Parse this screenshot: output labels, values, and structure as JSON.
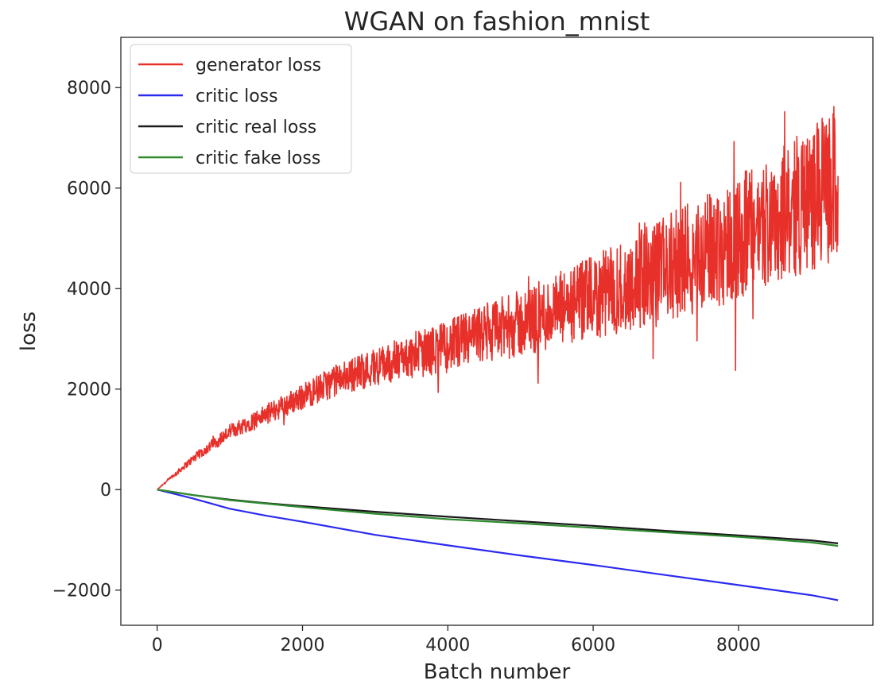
{
  "chart_data": {
    "type": "line",
    "title": "WGAN on fashion_mnist",
    "xlabel": "Batch number",
    "ylabel": "loss",
    "xlim": [
      -500,
      9850
    ],
    "ylim": [
      -2700,
      9000
    ],
    "xticks": [
      0,
      2000,
      4000,
      6000,
      8000
    ],
    "xtick_labels": [
      "0",
      "2000",
      "4000",
      "6000",
      "8000"
    ],
    "yticks": [
      -2000,
      0,
      2000,
      4000,
      6000,
      8000
    ],
    "ytick_labels": [
      "−2000",
      "0",
      "2000",
      "4000",
      "6000",
      "8000"
    ],
    "grid": false,
    "legend_position": "top-left",
    "series": [
      {
        "name": "generator loss",
        "color": "#e8302a",
        "noisy": true,
        "x": [
          0,
          500,
          1000,
          1500,
          2000,
          2500,
          3000,
          3500,
          4000,
          4500,
          5000,
          5500,
          6000,
          6500,
          7000,
          7500,
          8000,
          8500,
          9000,
          9370
        ],
        "values": [
          0,
          620,
          1150,
          1500,
          1850,
          2200,
          2450,
          2650,
          2850,
          3100,
          3300,
          3550,
          3800,
          4100,
          4400,
          4700,
          5000,
          5400,
          5800,
          6100
        ],
        "noise_band": [
          0,
          80,
          150,
          200,
          260,
          320,
          380,
          450,
          520,
          600,
          680,
          760,
          850,
          950,
          1050,
          1150,
          1250,
          1350,
          1450,
          1500
        ]
      },
      {
        "name": "critic loss",
        "color": "#2b2bf0",
        "noisy": false,
        "x": [
          0,
          500,
          1000,
          1500,
          2000,
          3000,
          4000,
          5000,
          6000,
          7000,
          8000,
          9000,
          9370
        ],
        "values": [
          0,
          -180,
          -380,
          -520,
          -640,
          -900,
          -1110,
          -1310,
          -1500,
          -1700,
          -1900,
          -2100,
          -2200
        ]
      },
      {
        "name": "critic real loss",
        "color": "#1a1a1a",
        "noisy": false,
        "x": [
          0,
          500,
          1000,
          1500,
          2000,
          3000,
          4000,
          5000,
          6000,
          7000,
          8000,
          9000,
          9370
        ],
        "values": [
          0,
          -110,
          -200,
          -270,
          -330,
          -440,
          -540,
          -630,
          -720,
          -820,
          -910,
          -1010,
          -1070
        ]
      },
      {
        "name": "critic fake loss",
        "color": "#2e8b2e",
        "noisy": false,
        "x": [
          0,
          500,
          1000,
          1500,
          2000,
          3000,
          4000,
          5000,
          6000,
          7000,
          8000,
          9000,
          9370
        ],
        "values": [
          0,
          -110,
          -210,
          -280,
          -350,
          -480,
          -590,
          -670,
          -760,
          -850,
          -940,
          -1050,
          -1120
        ]
      }
    ]
  }
}
